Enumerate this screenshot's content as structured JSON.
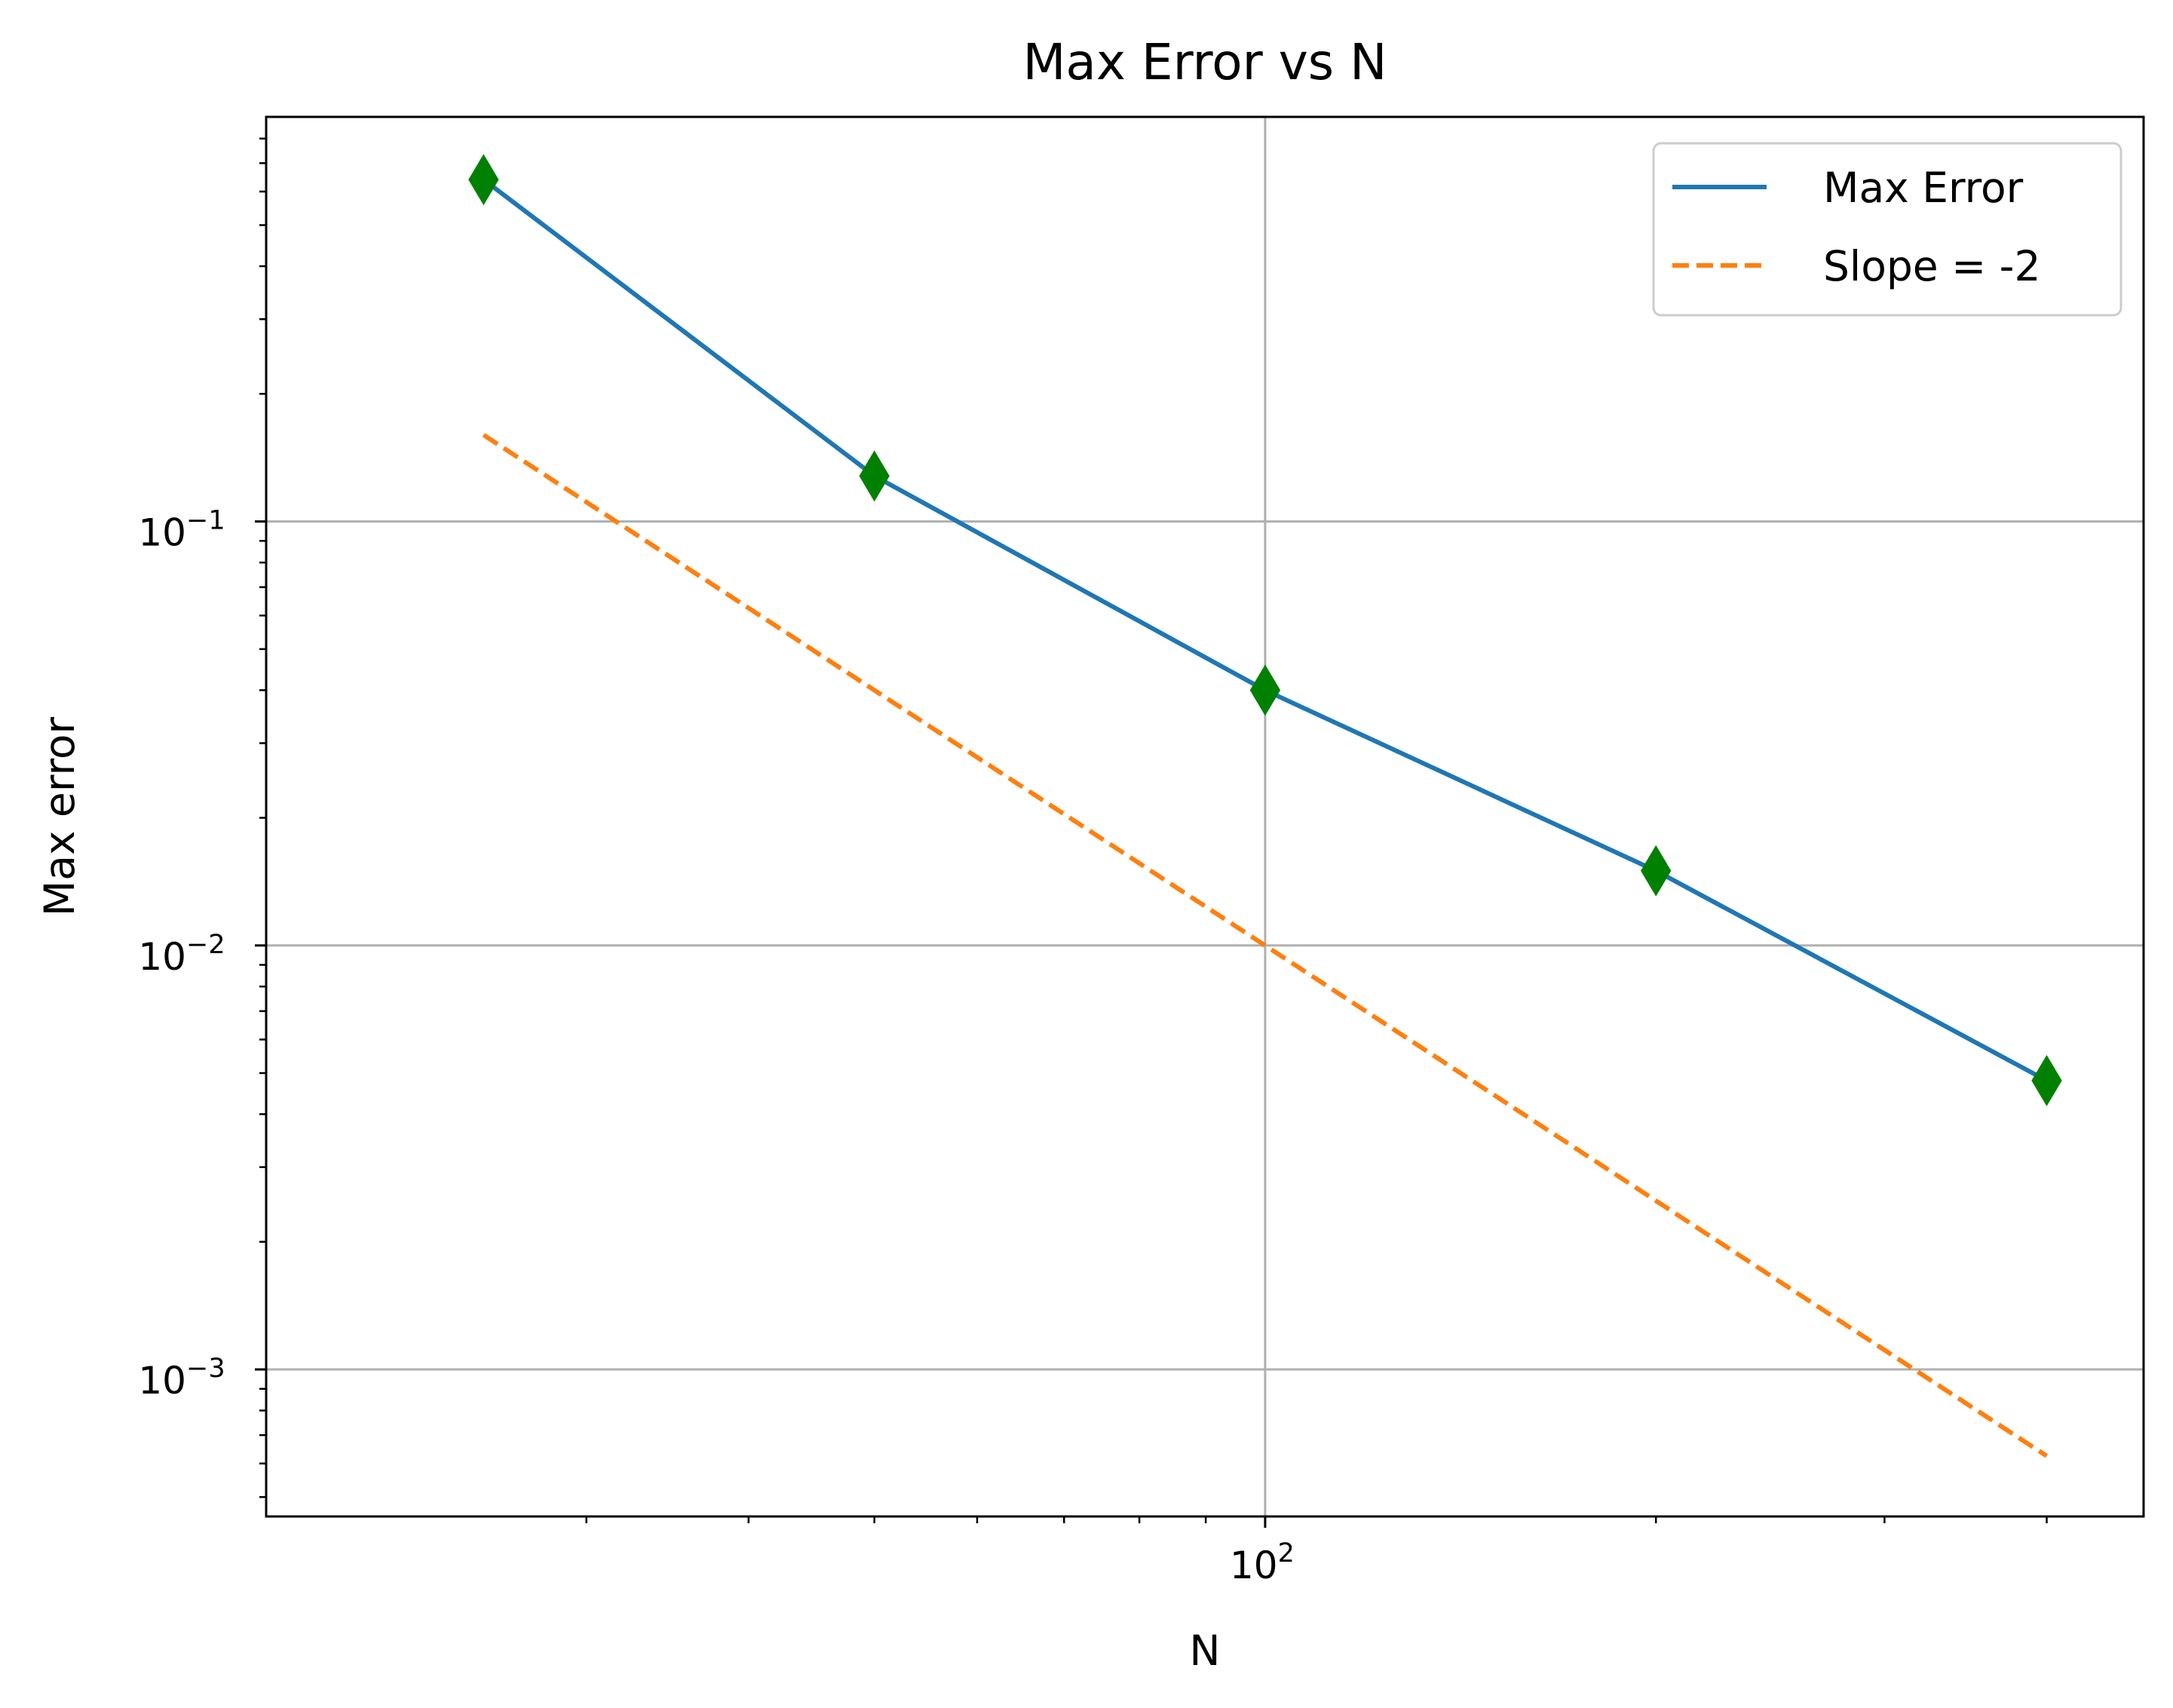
{
  "chart_data": {
    "type": "line",
    "title": "Max Error vs N",
    "xlabel": "N",
    "ylabel": "Max error",
    "xscale": "log",
    "yscale": "log",
    "xlim": [
      17.0,
      475.0
    ],
    "ylim": [
      0.00045,
      0.9
    ],
    "grid": true,
    "legend_position": "top-right",
    "x_major_ticks": [
      {
        "value": 100,
        "label": "10",
        "exp": "2"
      }
    ],
    "x_minor_ticks": [
      30,
      40,
      50,
      60,
      70,
      80,
      90,
      200,
      300,
      400
    ],
    "y_major_ticks": [
      {
        "value": 0.1,
        "label": "10",
        "exp": "−1"
      },
      {
        "value": 0.01,
        "label": "10",
        "exp": "−2"
      },
      {
        "value": 0.001,
        "label": "10",
        "exp": "−3"
      }
    ],
    "y_minor_ticks": [
      0.0005,
      0.0006,
      0.0007,
      0.0008,
      0.0009,
      0.002,
      0.003,
      0.004,
      0.005,
      0.006,
      0.007,
      0.008,
      0.009,
      0.02,
      0.03,
      0.04,
      0.05,
      0.06,
      0.07,
      0.08,
      0.09,
      0.2,
      0.3,
      0.4,
      0.5,
      0.6,
      0.7,
      0.8
    ],
    "series": [
      {
        "name": "Max Error",
        "color": "#1f77b4",
        "style": "solid",
        "marker": "thin-diamond",
        "marker_color": "#008000",
        "x": [
          25,
          50,
          100,
          200,
          400
        ],
        "y": [
          0.64,
          0.128,
          0.04,
          0.015,
          0.0048
        ]
      },
      {
        "name": "Slope = -2",
        "color": "#ff7f0e",
        "style": "dashed",
        "x": [
          25,
          400
        ],
        "y": [
          0.16,
          0.000625
        ]
      }
    ]
  }
}
